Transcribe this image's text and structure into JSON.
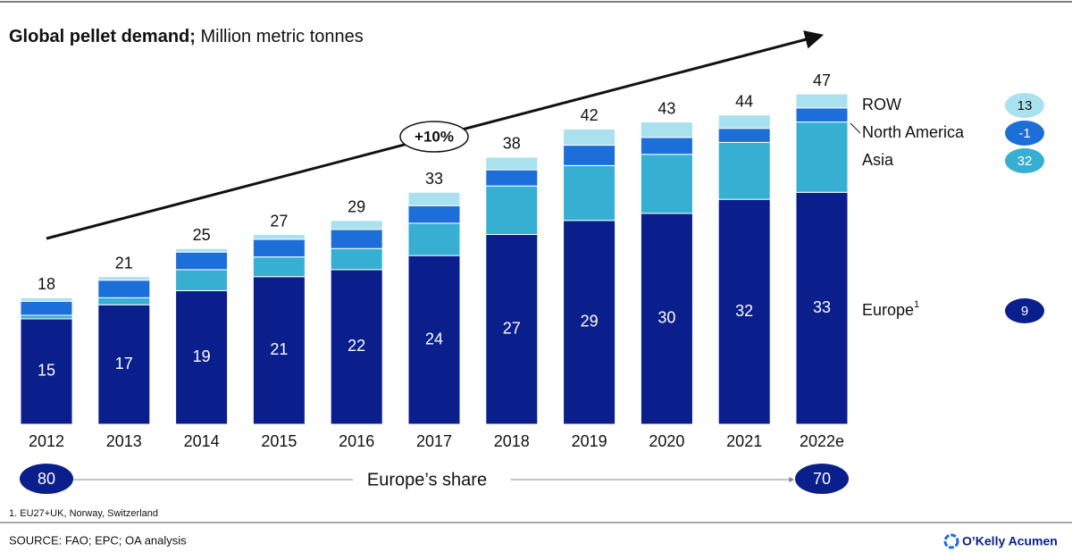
{
  "chart_data": {
    "type": "stacked_bar",
    "title": "Global pellet demand;",
    "subtitle": "Million metric tonnes",
    "categories": [
      "2012",
      "2013",
      "2014",
      "2015",
      "2016",
      "2017",
      "2018",
      "2019",
      "2020",
      "2021",
      "2022e"
    ],
    "series": [
      {
        "name": "Europe",
        "superscript": "1",
        "color": "#0a1e8c",
        "growth": 9,
        "labeled": true,
        "values": [
          15,
          17,
          19,
          21,
          22,
          24,
          27,
          29,
          30,
          32,
          33
        ]
      },
      {
        "name": "Asia",
        "color": "#36afd2",
        "growth": 32,
        "values": [
          0.5,
          1,
          3,
          2.8,
          3,
          4.6,
          6.9,
          7.8,
          8.4,
          8.1,
          10
        ]
      },
      {
        "name": "North America",
        "color": "#1c6fd8",
        "growth": -1,
        "values": [
          2,
          2.5,
          2.5,
          2.5,
          2.7,
          2.5,
          2.3,
          2.9,
          2.4,
          2,
          2
        ]
      },
      {
        "name": "ROW",
        "color": "#a9e1ef",
        "growth": 13,
        "values": [
          0.5,
          0.5,
          0.5,
          0.7,
          1.3,
          1.9,
          1.8,
          2.3,
          2.2,
          1.9,
          2
        ]
      }
    ],
    "totals": [
      18,
      21,
      25,
      27,
      29,
      33,
      38,
      42,
      43,
      44,
      47
    ],
    "trend_annotation": "+10%",
    "share": {
      "label": "Europe’s share",
      "start": 80,
      "end": 70
    },
    "footnote": "1. EU27+UK,  Norway, Switzerland",
    "source": "SOURCE: FAO; EPC; OA analysis",
    "brand": "O’Kelly Acumen"
  }
}
